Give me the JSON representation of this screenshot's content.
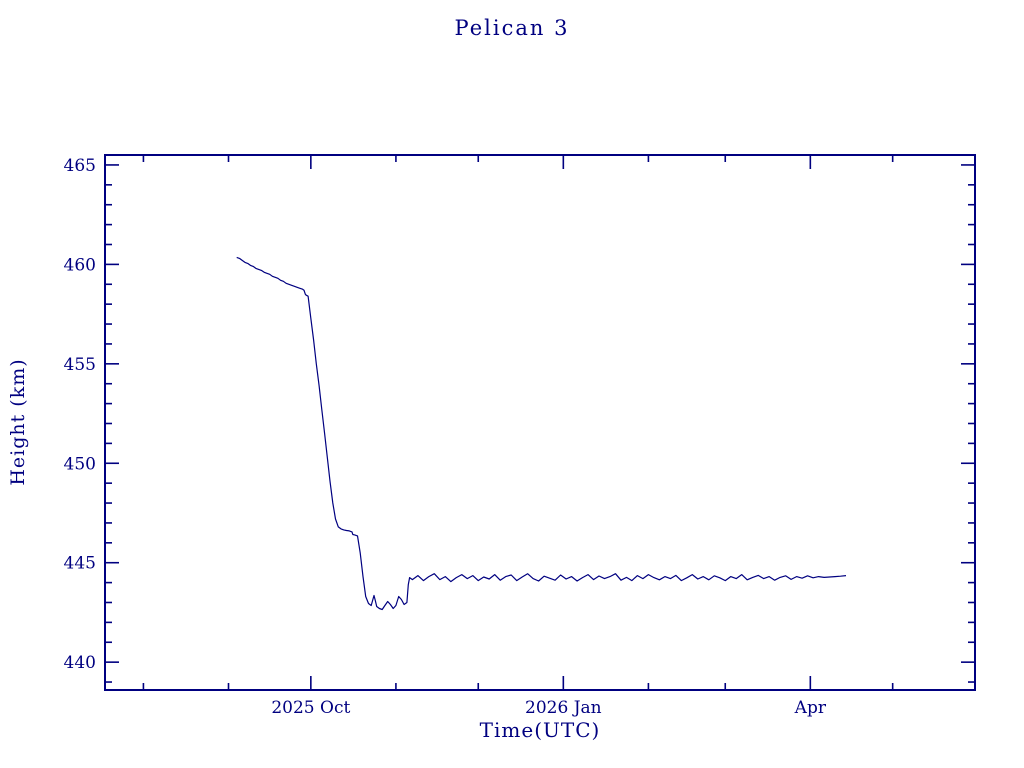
{
  "chart_data": {
    "type": "line",
    "title": "Pelican 3",
    "xlabel": "Time(UTC)",
    "ylabel": "Height (km)",
    "line_color": "#000080",
    "text_color": "#000080",
    "background": "#ffffff",
    "grid": false,
    "legend": "none",
    "x_unit": "days since 2025-09-01",
    "xlim_days": [
      -45,
      272
    ],
    "ylim": [
      438.6,
      465.5
    ],
    "x_ticks": [
      {
        "pos": 30,
        "label": "2025 Oct"
      },
      {
        "pos": 122,
        "label": "2026 Jan"
      },
      {
        "pos": 212,
        "label": "Apr"
      }
    ],
    "x_minor_ticks": [
      -31,
      0,
      61,
      91,
      153,
      181,
      242
    ],
    "y_major_ticks": [
      440,
      445,
      450,
      455,
      460,
      465
    ],
    "y_minor_step": 1,
    "series": [
      {
        "name": "height",
        "x": [
          3,
          4,
          5,
          6,
          7,
          8,
          9,
          10,
          11,
          12,
          13,
          14,
          15,
          16,
          17,
          18,
          19,
          20,
          21,
          22,
          23,
          24,
          25,
          26,
          27,
          27.5,
          28,
          28.3,
          29,
          30,
          31,
          32,
          33,
          34,
          35,
          36,
          37,
          38,
          39,
          40,
          41,
          42,
          43,
          44,
          45,
          45.3,
          46,
          47,
          48,
          49,
          50,
          51,
          52,
          53,
          53.5,
          54,
          55,
          56,
          57,
          58,
          59,
          60,
          61,
          62,
          63,
          64,
          65,
          65.5,
          66,
          67,
          69,
          71,
          73,
          75,
          77,
          79,
          81,
          83,
          85,
          87,
          89,
          91,
          93,
          95,
          97,
          99,
          101,
          103,
          105,
          107,
          109,
          111,
          113,
          115,
          117,
          119,
          121,
          123,
          125,
          127,
          129,
          131,
          133,
          135,
          137,
          139,
          141,
          143,
          145,
          147,
          149,
          151,
          153,
          155,
          157,
          159,
          161,
          163,
          165,
          167,
          169,
          171,
          173,
          175,
          177,
          179,
          181,
          183,
          185,
          187,
          189,
          191,
          193,
          195,
          197,
          199,
          201,
          203,
          205,
          207,
          209,
          211,
          213,
          215,
          217,
          219,
          221,
          223,
          225
        ],
        "y": [
          460.35,
          460.3,
          460.2,
          460.1,
          460.05,
          459.95,
          459.9,
          459.8,
          459.75,
          459.7,
          459.6,
          459.55,
          459.5,
          459.4,
          459.35,
          459.3,
          459.2,
          459.15,
          459.05,
          459.0,
          458.95,
          458.9,
          458.85,
          458.8,
          458.75,
          458.7,
          458.5,
          458.45,
          458.4,
          457.3,
          456.2,
          455.0,
          453.9,
          452.7,
          451.5,
          450.3,
          449.1,
          448.0,
          447.2,
          446.8,
          446.7,
          446.65,
          446.62,
          446.6,
          446.55,
          446.42,
          446.4,
          446.35,
          445.5,
          444.3,
          443.3,
          442.95,
          442.85,
          443.35,
          443.1,
          442.8,
          442.7,
          442.65,
          442.85,
          443.05,
          442.9,
          442.7,
          442.85,
          443.3,
          443.15,
          442.9,
          443.0,
          443.9,
          444.25,
          444.15,
          444.35,
          444.1,
          444.3,
          444.45,
          444.15,
          444.3,
          444.05,
          444.25,
          444.4,
          444.2,
          444.35,
          444.1,
          444.28,
          444.18,
          444.4,
          444.12,
          444.3,
          444.38,
          444.1,
          444.28,
          444.45,
          444.2,
          444.08,
          444.32,
          444.22,
          444.12,
          444.38,
          444.18,
          444.3,
          444.08,
          444.25,
          444.4,
          444.15,
          444.33,
          444.2,
          444.3,
          444.45,
          444.12,
          444.26,
          444.1,
          444.35,
          444.2,
          444.4,
          444.25,
          444.14,
          444.3,
          444.2,
          444.36,
          444.1,
          444.24,
          444.4,
          444.18,
          444.3,
          444.14,
          444.34,
          444.24,
          444.1,
          444.3,
          444.2,
          444.4,
          444.14,
          444.26,
          444.36,
          444.2,
          444.3,
          444.12,
          444.26,
          444.34,
          444.16,
          444.3,
          444.22,
          444.34,
          444.24,
          444.3,
          444.26,
          444.28,
          444.3,
          444.32,
          444.35
        ]
      }
    ]
  }
}
